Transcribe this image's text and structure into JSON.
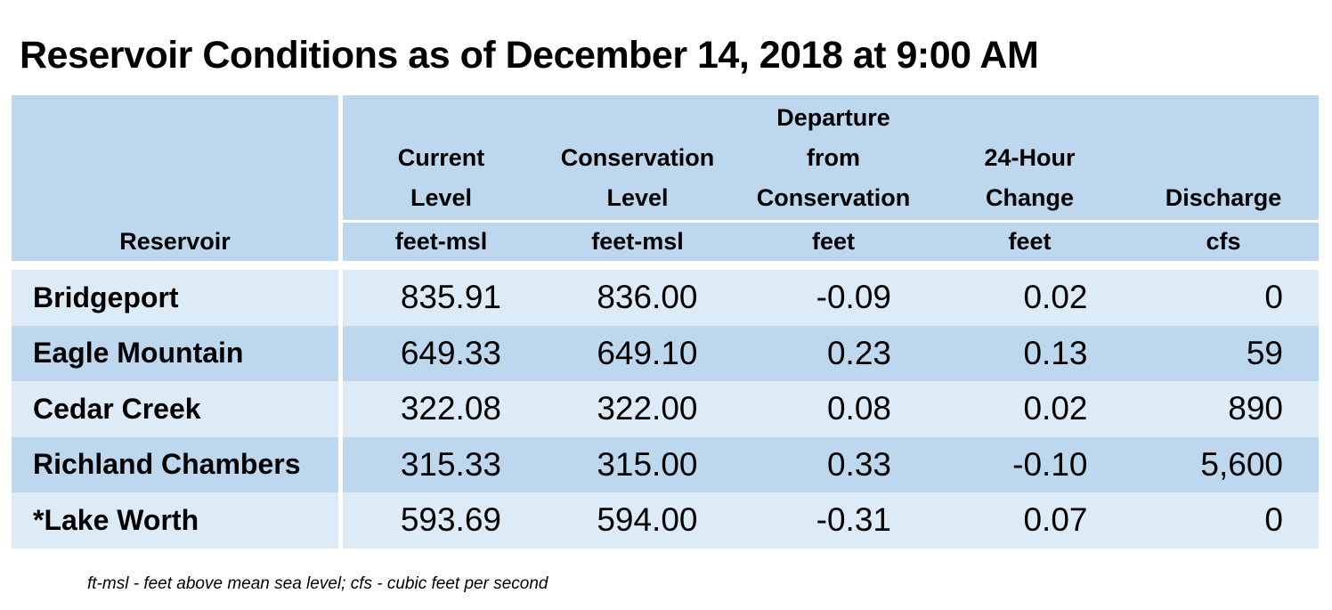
{
  "title": "Reservoir Conditions as of December 14, 2018 at 9:00 AM",
  "table": {
    "headers": [
      {
        "lines": [
          ""
        ],
        "unit": "Reservoir"
      },
      {
        "lines": [
          "Current",
          "Level"
        ],
        "unit": "feet-msl"
      },
      {
        "lines": [
          "Conservation",
          "Level"
        ],
        "unit": "feet-msl"
      },
      {
        "lines": [
          "Departure",
          "from",
          "Conservation"
        ],
        "unit": "feet"
      },
      {
        "lines": [
          "24-Hour",
          "Change"
        ],
        "unit": "feet"
      },
      {
        "lines": [
          "Discharge"
        ],
        "unit": "cfs"
      }
    ],
    "rows": [
      {
        "name": "Bridgeport",
        "current": "835.91",
        "conservation": "836.00",
        "departure": "-0.09",
        "change": "0.02",
        "discharge": "0"
      },
      {
        "name": "Eagle Mountain",
        "current": "649.33",
        "conservation": "649.10",
        "departure": "0.23",
        "change": "0.13",
        "discharge": "59"
      },
      {
        "name": "Cedar Creek",
        "current": "322.08",
        "conservation": "322.00",
        "departure": "0.08",
        "change": "0.02",
        "discharge": "890"
      },
      {
        "name": "Richland Chambers",
        "current": "315.33",
        "conservation": "315.00",
        "departure": "0.33",
        "change": "-0.10",
        "discharge": "5,600"
      },
      {
        "name": "*Lake Worth",
        "current": "593.69",
        "conservation": "594.00",
        "departure": "-0.31",
        "change": "0.07",
        "discharge": "0"
      }
    ]
  },
  "footnote": "ft-msl - feet above mean sea level; cfs - cubic feet per second",
  "colors": {
    "header_bg": "#bdd7ee",
    "row_light": "#ddebf7",
    "row_dark": "#bdd7ee"
  }
}
